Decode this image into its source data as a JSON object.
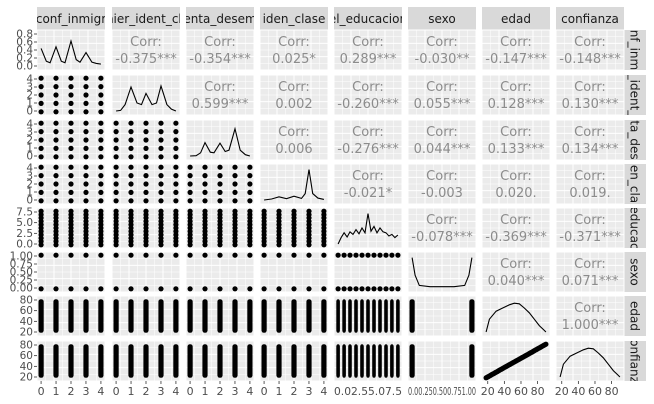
{
  "chart_data": {
    "type": "scatter",
    "variables": [
      "conf_inmigr",
      "nier_ident_ch",
      "enta_desem",
      "iden_clase",
      "el_educacion",
      "sexo",
      "edad",
      "confianza"
    ],
    "row_strip_labels": [
      "nf_inm",
      "_ident_",
      "ta_des",
      "en_cla",
      "educac",
      "sexo",
      "edad",
      "onfianz"
    ],
    "corr_heading": "Corr:",
    "correlations": {
      "0": {
        "1": "-0.375***",
        "2": "-0.354***",
        "3": "0.025*",
        "4": "0.289***",
        "5": "-0.030**",
        "6": "-0.147***",
        "7": "-0.148***"
      },
      "1": {
        "2": "0.599***",
        "3": "0.002",
        "4": "-0.260***",
        "5": "0.055***",
        "6": "0.128***",
        "7": "0.130***"
      },
      "2": {
        "3": "0.006",
        "4": "-0.276***",
        "5": "0.044***",
        "6": "0.133***",
        "7": "0.134***"
      },
      "3": {
        "4": "-0.021*",
        "5": "-0.003",
        "6": "0.020.",
        "7": "0.019."
      },
      "4": {
        "5": "-0.078***",
        "6": "-0.369***",
        "7": "-0.371***"
      },
      "5": {
        "6": "0.040***",
        "7": "0.071***"
      },
      "6": {
        "7": "1.000***"
      }
    },
    "x_tick_labels": [
      [
        "0",
        "1",
        "2",
        "3",
        "4"
      ],
      [
        "0",
        "1",
        "2",
        "3",
        "4"
      ],
      [
        "0",
        "1",
        "2",
        "3",
        "4"
      ],
      [
        "0",
        "1",
        "2",
        "3",
        "4"
      ],
      [
        "0.02.55.07.5"
      ],
      [
        "0.00.250.500.751.00"
      ],
      [
        "20",
        "40",
        "60",
        "80"
      ],
      [
        "20",
        "40",
        "60",
        "80"
      ]
    ],
    "y_tick_labels": [
      [
        "0.8",
        "0.6",
        "0.4",
        "0.2",
        "0.0"
      ],
      [
        "4",
        "3",
        "2",
        "1",
        "0"
      ],
      [
        "4",
        "3",
        "2",
        "1",
        "0"
      ],
      [
        "4",
        "3",
        "2",
        "1",
        "0"
      ],
      [
        "7.5",
        "5.0",
        "2.5",
        "0.0"
      ],
      [
        "1.00",
        "0.75",
        "0.50",
        "0.25",
        "0.00"
      ],
      [
        "80",
        "60",
        "40",
        "20"
      ],
      [
        "80",
        "60",
        "40",
        "20"
      ]
    ],
    "value_ranges": [
      [
        0,
        4
      ],
      [
        0,
        4
      ],
      [
        0,
        4
      ],
      [
        0,
        4
      ],
      [
        0,
        10
      ],
      [
        0,
        1
      ],
      [
        18,
        90
      ],
      [
        18,
        90
      ]
    ],
    "discrete_levels": [
      [
        0,
        1,
        2,
        3,
        4
      ],
      [
        0,
        1,
        2,
        3,
        4
      ],
      [
        0,
        1,
        2,
        3,
        4
      ],
      [
        0,
        1,
        2,
        3,
        4
      ],
      [
        0,
        1,
        2,
        3,
        4,
        5,
        6,
        7,
        8,
        9,
        10
      ],
      [
        0,
        1
      ],
      null,
      null
    ],
    "density_curves": [
      [
        [
          0,
          0.55
        ],
        [
          0.35,
          0.15
        ],
        [
          0.6,
          0.1
        ],
        [
          1,
          0.6
        ],
        [
          1.35,
          0.15
        ],
        [
          1.6,
          0.1
        ],
        [
          2,
          0.78
        ],
        [
          2.35,
          0.2
        ],
        [
          2.6,
          0.12
        ],
        [
          3,
          0.42
        ],
        [
          3.4,
          0.12
        ],
        [
          3.7,
          0.08
        ],
        [
          4,
          0.06
        ]
      ],
      [
        [
          0,
          0.0
        ],
        [
          0.3,
          0.02
        ],
        [
          0.6,
          0.2
        ],
        [
          1,
          0.75
        ],
        [
          1.4,
          0.25
        ],
        [
          1.7,
          0.2
        ],
        [
          2,
          0.55
        ],
        [
          2.4,
          0.2
        ],
        [
          2.7,
          0.25
        ],
        [
          3,
          0.78
        ],
        [
          3.4,
          0.2
        ],
        [
          3.7,
          0.06
        ],
        [
          4,
          0.0
        ]
      ],
      [
        [
          0,
          0.0
        ],
        [
          0.4,
          0.01
        ],
        [
          0.7,
          0.1
        ],
        [
          1,
          0.42
        ],
        [
          1.35,
          0.12
        ],
        [
          1.6,
          0.1
        ],
        [
          2,
          0.4
        ],
        [
          2.35,
          0.14
        ],
        [
          2.6,
          0.18
        ],
        [
          3,
          0.85
        ],
        [
          3.35,
          0.18
        ],
        [
          3.7,
          0.04
        ],
        [
          4,
          0.0
        ]
      ],
      [
        [
          0,
          0.0
        ],
        [
          0.5,
          0.03
        ],
        [
          1,
          0.1
        ],
        [
          1.5,
          0.04
        ],
        [
          2,
          0.12
        ],
        [
          2.5,
          0.05
        ],
        [
          2.75,
          0.2
        ],
        [
          3,
          0.95
        ],
        [
          3.25,
          0.2
        ],
        [
          3.6,
          0.06
        ],
        [
          4,
          0.02
        ]
      ],
      [
        [
          0,
          0.0
        ],
        [
          0.5,
          0.2
        ],
        [
          1,
          0.35
        ],
        [
          1.5,
          0.22
        ],
        [
          2,
          0.38
        ],
        [
          2.5,
          0.3
        ],
        [
          3,
          0.45
        ],
        [
          3.5,
          0.32
        ],
        [
          4,
          0.5
        ],
        [
          4.5,
          0.35
        ],
        [
          5,
          0.95
        ],
        [
          5.5,
          0.4
        ],
        [
          6,
          0.55
        ],
        [
          6.5,
          0.35
        ],
        [
          7,
          0.5
        ],
        [
          7.5,
          0.38
        ],
        [
          8,
          0.35
        ],
        [
          8.5,
          0.25
        ],
        [
          9,
          0.3
        ],
        [
          9.5,
          0.2
        ],
        [
          10,
          0.28
        ]
      ],
      [
        [
          0,
          0.95
        ],
        [
          0.05,
          0.4
        ],
        [
          0.12,
          0.08
        ],
        [
          0.3,
          0.04
        ],
        [
          0.5,
          0.04
        ],
        [
          0.7,
          0.04
        ],
        [
          0.88,
          0.08
        ],
        [
          0.95,
          0.4
        ],
        [
          1,
          0.95
        ]
      ],
      [
        [
          18,
          0.0
        ],
        [
          22,
          0.4
        ],
        [
          30,
          0.65
        ],
        [
          38,
          0.75
        ],
        [
          46,
          0.85
        ],
        [
          52,
          0.9
        ],
        [
          58,
          0.88
        ],
        [
          64,
          0.75
        ],
        [
          70,
          0.6
        ],
        [
          76,
          0.4
        ],
        [
          82,
          0.2
        ],
        [
          88,
          0.05
        ],
        [
          90,
          0.0
        ]
      ],
      [
        [
          18,
          0.0
        ],
        [
          22,
          0.4
        ],
        [
          30,
          0.65
        ],
        [
          38,
          0.75
        ],
        [
          46,
          0.85
        ],
        [
          52,
          0.9
        ],
        [
          58,
          0.88
        ],
        [
          64,
          0.75
        ],
        [
          70,
          0.6
        ],
        [
          76,
          0.4
        ],
        [
          82,
          0.2
        ],
        [
          88,
          0.05
        ],
        [
          90,
          0.0
        ]
      ]
    ],
    "grid": true,
    "colors": {
      "panel": "#ebebeb",
      "grid": "#ffffff",
      "strip": "#d9d9d9",
      "ink": "#000000",
      "corr_text": "#8c8c8c",
      "tick_text": "#4d4d4d"
    }
  }
}
